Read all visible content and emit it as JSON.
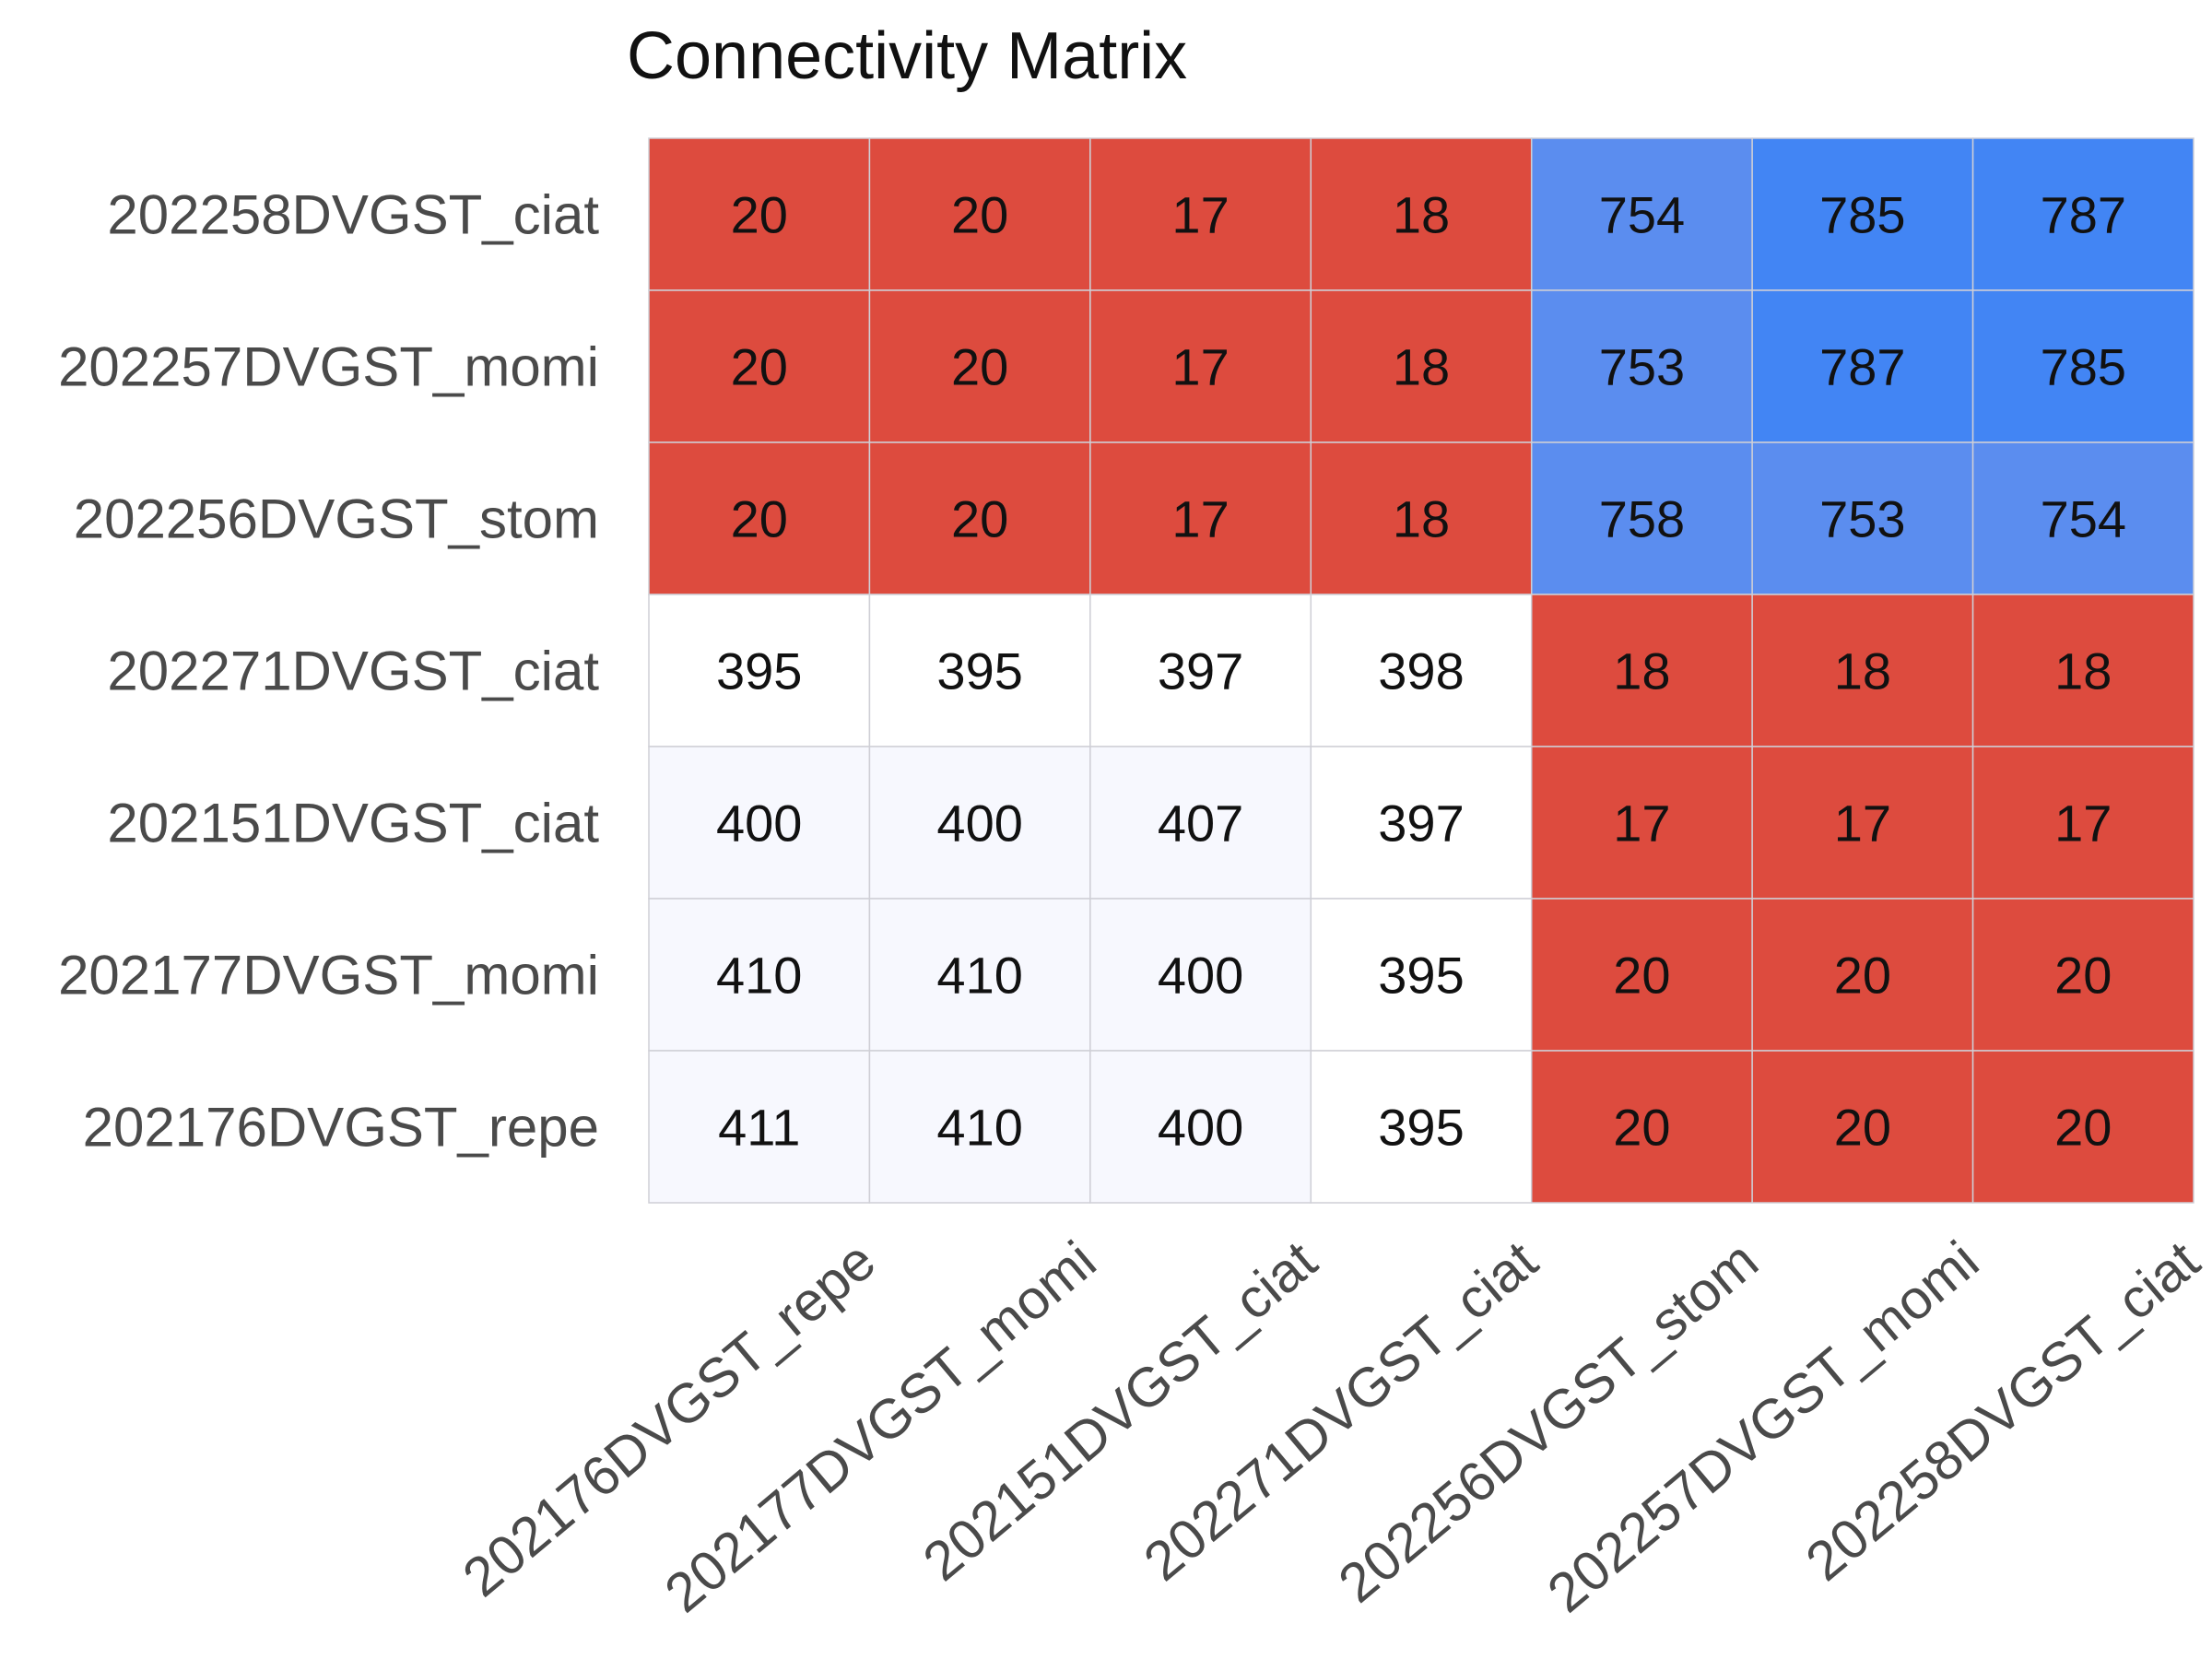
{
  "chart_data": {
    "type": "heatmap",
    "title": "Connectivity Matrix",
    "x_labels": [
      "202176DVGST_repe",
      "202177DVGST_momi",
      "202151DVGST_ciat",
      "202271DVGST_ciat",
      "202256DVGST_stom",
      "202257DVGST_momi",
      "202258DVGST_ciat"
    ],
    "y_labels": [
      "202258DVGST_ciat",
      "202257DVGST_momi",
      "202256DVGST_stom",
      "202271DVGST_ciat",
      "202151DVGST_ciat",
      "202177DVGST_momi",
      "202176DVGST_repe"
    ],
    "values": [
      [
        20,
        20,
        17,
        18,
        754,
        785,
        787
      ],
      [
        20,
        20,
        17,
        18,
        753,
        787,
        785
      ],
      [
        20,
        20,
        17,
        18,
        758,
        753,
        754
      ],
      [
        395,
        395,
        397,
        398,
        18,
        18,
        18
      ],
      [
        400,
        400,
        407,
        397,
        17,
        17,
        17
      ],
      [
        410,
        410,
        400,
        395,
        20,
        20,
        20
      ],
      [
        411,
        410,
        400,
        395,
        20,
        20,
        20
      ]
    ],
    "colors": {
      "low": "#dd4b3e",
      "mid": "#ffffff",
      "mid_tint": "#f7f8fe",
      "high_light": "#5b8def",
      "high": "#4285f4",
      "grid": "#cfcfd6"
    }
  }
}
